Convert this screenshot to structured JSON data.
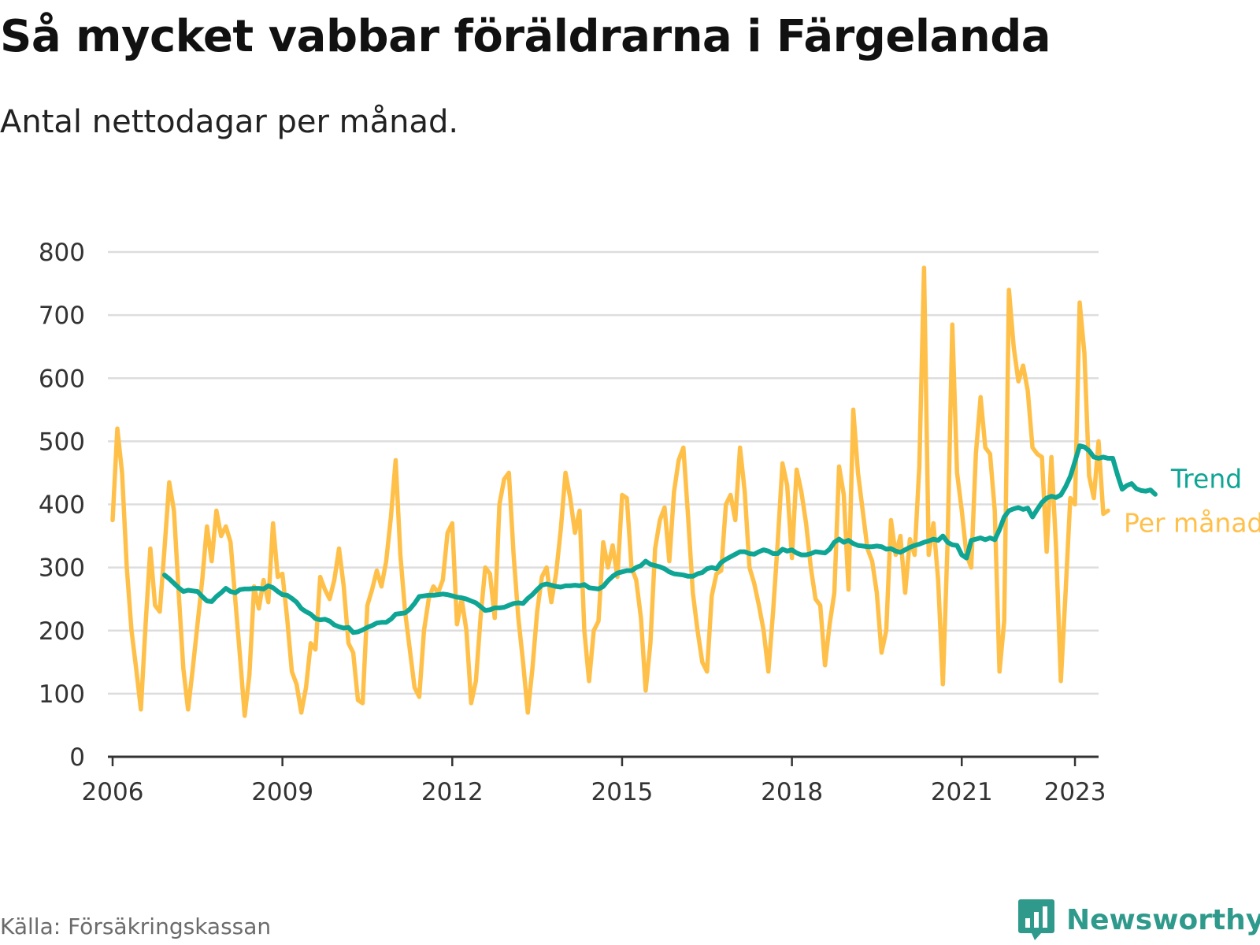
{
  "title": "Så mycket vabbar föräldrarna i Färgelanda",
  "subtitle": "Antal nettodagar per månad.",
  "source": "Källa: Försäkringskassan",
  "brand": "Newsworthy",
  "colors": {
    "per_month": "#ffc04a",
    "trend": "#0ea595",
    "grid": "#dddddd",
    "axis": "#333333",
    "brand": "#2f9a8c"
  },
  "icons": {
    "brand_logo": "chart-speech-bubble-icon"
  },
  "chart_data": {
    "type": "line",
    "title": "Så mycket vabbar föräldrarna i Färgelanda",
    "subtitle": "Antal nettodagar per månad.",
    "xlabel": "",
    "ylabel": "",
    "ylim": [
      0,
      800
    ],
    "xlim": [
      "2005-12",
      "2023-06"
    ],
    "y_ticks": [
      0,
      100,
      200,
      300,
      400,
      500,
      600,
      700,
      800
    ],
    "x_ticks": [
      {
        "date": "2006-01",
        "label": "2006"
      },
      {
        "date": "2009-01",
        "label": "2009"
      },
      {
        "date": "2012-01",
        "label": "2012"
      },
      {
        "date": "2015-01",
        "label": "2015"
      },
      {
        "date": "2018-01",
        "label": "2018"
      },
      {
        "date": "2021-01",
        "label": "2021"
      },
      {
        "date": "2023-01",
        "label": "2023"
      }
    ],
    "grid": true,
    "legend": "direct labels at right end of lines",
    "series": [
      {
        "name": "Per månad",
        "color": "#ffc04a",
        "start": "2006-01",
        "values": [
          375,
          520,
          450,
          300,
          200,
          140,
          75,
          210,
          330,
          240,
          230,
          330,
          435,
          390,
          260,
          140,
          75,
          140,
          210,
          280,
          365,
          310,
          390,
          350,
          365,
          340,
          250,
          160,
          65,
          130,
          270,
          235,
          280,
          245,
          370,
          285,
          290,
          220,
          135,
          115,
          70,
          110,
          180,
          170,
          285,
          265,
          250,
          280,
          330,
          270,
          180,
          165,
          90,
          85,
          240,
          265,
          295,
          270,
          310,
          380,
          470,
          320,
          230,
          170,
          110,
          95,
          200,
          250,
          270,
          260,
          280,
          355,
          370,
          210,
          250,
          200,
          85,
          120,
          220,
          300,
          290,
          220,
          400,
          440,
          450,
          320,
          220,
          150,
          70,
          140,
          230,
          285,
          300,
          245,
          290,
          360,
          450,
          410,
          355,
          390,
          200,
          120,
          200,
          215,
          340,
          300,
          335,
          285,
          415,
          410,
          300,
          280,
          220,
          105,
          180,
          330,
          375,
          395,
          310,
          420,
          470,
          490,
          380,
          260,
          200,
          150,
          135,
          255,
          290,
          295,
          400,
          415,
          375,
          490,
          420,
          300,
          275,
          240,
          200,
          135,
          230,
          340,
          465,
          430,
          315,
          455,
          420,
          370,
          300,
          250,
          240,
          145,
          210,
          260,
          460,
          415,
          265,
          550,
          450,
          390,
          330,
          310,
          260,
          165,
          200,
          375,
          320,
          350,
          260,
          345,
          320,
          460,
          775,
          320,
          370,
          280,
          115,
          340,
          685,
          450,
          390,
          320,
          300,
          480,
          570,
          490,
          480,
          390,
          135,
          215,
          740,
          650,
          595,
          620,
          580,
          490,
          480,
          475,
          325,
          475,
          330,
          120,
          260,
          410,
          400,
          720,
          640,
          445,
          410,
          500,
          385,
          390
        ]
      },
      {
        "name": "Trend",
        "color": "#0ea595",
        "start": "2006-12",
        "values": [
          288,
          282,
          275,
          268,
          262,
          264,
          263,
          262,
          254,
          247,
          246,
          254,
          260,
          267,
          262,
          260,
          265,
          266,
          266,
          267,
          267,
          266,
          271,
          268,
          262,
          257,
          256,
          251,
          245,
          235,
          230,
          226,
          219,
          217,
          218,
          215,
          209,
          206,
          204,
          205,
          197,
          198,
          201,
          205,
          208,
          212,
          213,
          213,
          218,
          226,
          227,
          228,
          234,
          243,
          254,
          255,
          256,
          256,
          257,
          258,
          257,
          255,
          253,
          252,
          250,
          247,
          244,
          238,
          232,
          233,
          236,
          236,
          237,
          240,
          243,
          244,
          243,
          251,
          257,
          265,
          272,
          274,
          272,
          270,
          269,
          271,
          271,
          272,
          271,
          273,
          268,
          267,
          266,
          270,
          279,
          286,
          291,
          293,
          295,
          295,
          300,
          303,
          310,
          305,
          303,
          301,
          298,
          293,
          290,
          289,
          288,
          286,
          286,
          290,
          292,
          298,
          300,
          298,
          308,
          313,
          317,
          321,
          325,
          325,
          322,
          321,
          325,
          328,
          326,
          322,
          322,
          329,
          326,
          328,
          323,
          320,
          320,
          322,
          325,
          324,
          323,
          329,
          340,
          345,
          340,
          343,
          338,
          335,
          334,
          333,
          333,
          334,
          333,
          329,
          330,
          326,
          324,
          328,
          332,
          335,
          337,
          340,
          342,
          345,
          343,
          350,
          340,
          336,
          335,
          320,
          315,
          343,
          345,
          347,
          344,
          347,
          344,
          360,
          380,
          390,
          393,
          395,
          392,
          394,
          380,
          392,
          403,
          410,
          413,
          411,
          415,
          428,
          444,
          468,
          493,
          491,
          485,
          475,
          473,
          475,
          473,
          473,
          447,
          424,
          430,
          433,
          425,
          422,
          421,
          423,
          416
        ]
      }
    ]
  }
}
